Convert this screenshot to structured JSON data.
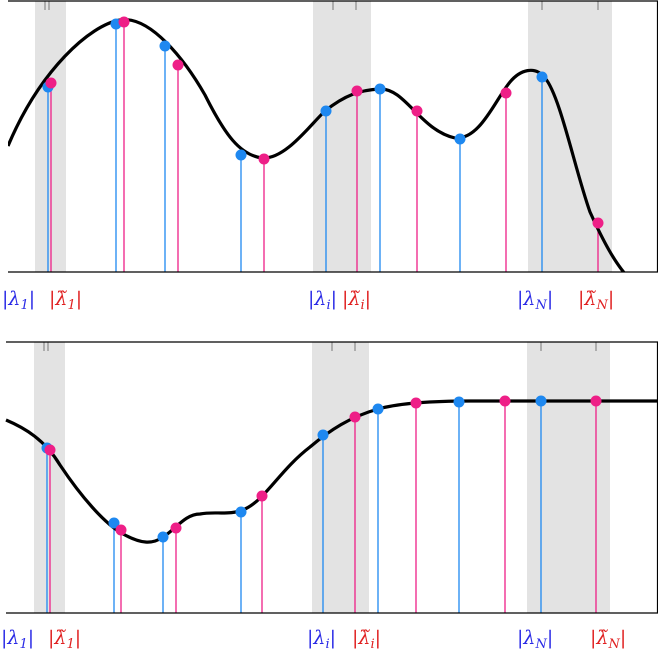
{
  "panels": [
    {
      "id": "top",
      "labels": {
        "lambda_1": "|λ1|",
        "lambda_1_tilde": "|λ̃1|",
        "lambda_i": "|λi|",
        "lambda_i_tilde": "|λ̃i|",
        "lambda_N": "|λN|",
        "lambda_N_tilde": "|λ̃N|"
      }
    },
    {
      "id": "bottom",
      "labels": {
        "lambda_1": "|λ1|",
        "lambda_1_tilde": "|λ̃1|",
        "lambda_i": "|λi|",
        "lambda_i_tilde": "|λ̃i|",
        "lambda_N": "|λN|",
        "lambda_N_tilde": "|λ̃N|"
      }
    }
  ],
  "colors": {
    "blue": "#1e88f0",
    "magenta": "#ee1f87",
    "band": "#e3e3e3",
    "curve": "#000000",
    "frame": "#000000",
    "label_blue": "#2a2ae6",
    "label_red": "#e02020"
  }
}
